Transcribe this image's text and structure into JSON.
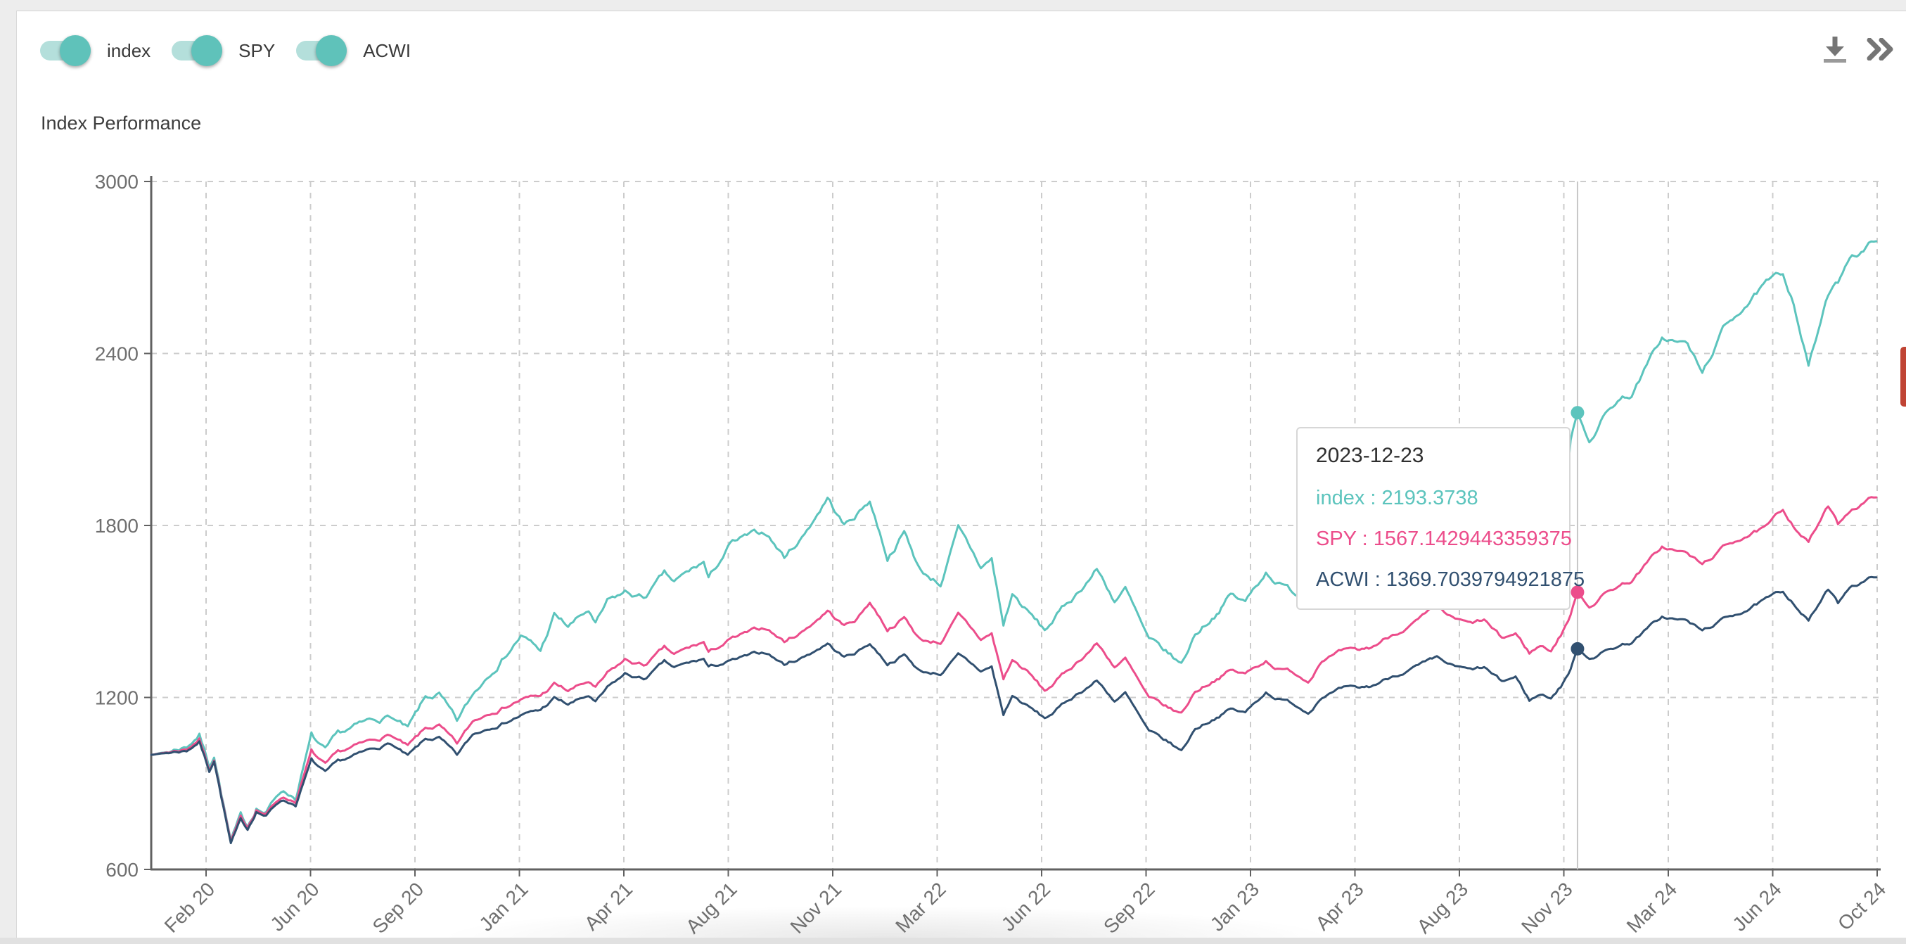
{
  "page": {
    "background": "#ededed",
    "card_background": "#ffffff"
  },
  "toolbar": {
    "toggles": [
      {
        "label": "index",
        "on": true
      },
      {
        "label": "SPY",
        "on": true
      },
      {
        "label": "ACWI",
        "on": true
      }
    ],
    "toggle_on_color": "#5fc2ba",
    "toggle_track_color": "#b4dfdb",
    "icons": [
      {
        "name": "download"
      },
      {
        "name": "double-chevron-right"
      }
    ],
    "icon_color": "#757575"
  },
  "header": {
    "title": "Index Performance"
  },
  "chart_data": {
    "type": "line",
    "title": "Index Performance",
    "xlabel": "",
    "ylabel": "",
    "ylim": [
      600,
      3000
    ],
    "y_ticks": [
      600,
      1200,
      1800,
      2400,
      3000
    ],
    "x_tick_labels": [
      "Feb 20",
      "Jun 20",
      "Sep 20",
      "Jan 21",
      "Apr 21",
      "Aug 21",
      "Nov 21",
      "Mar 22",
      "Jun 22",
      "Sep 22",
      "Jan 23",
      "Apr 23",
      "Aug 23",
      "Nov 23",
      "Mar 24",
      "Jun 24",
      "Oct 24"
    ],
    "grid": "dashed",
    "legend_position": "top-toggles",
    "dates": [
      "2020-01-02",
      "2020-01-20",
      "2020-02-07",
      "2020-02-20",
      "2020-03-01",
      "2020-03-06",
      "2020-03-23",
      "2020-04-02",
      "2020-04-09",
      "2020-04-18",
      "2020-04-28",
      "2020-05-13",
      "2020-05-28",
      "2020-06-13",
      "2020-06-27",
      "2020-07-10",
      "2020-07-24",
      "2020-08-11",
      "2020-09-01",
      "2020-09-19",
      "2020-10-07",
      "2020-10-21",
      "2020-11-08",
      "2020-11-24",
      "2020-12-14",
      "2021-01-12",
      "2021-02-01",
      "2021-02-15",
      "2021-03-01",
      "2021-03-22",
      "2021-03-29",
      "2021-04-10",
      "2021-04-28",
      "2021-05-17",
      "2021-06-07",
      "2021-06-17",
      "2021-07-17",
      "2021-07-22",
      "2021-08-13",
      "2021-08-30",
      "2021-09-19",
      "2021-10-07",
      "2021-10-25",
      "2021-11-20",
      "2021-12-07",
      "2021-12-20",
      "2022-01-02",
      "2022-01-20",
      "2022-02-06",
      "2022-02-23",
      "2022-03-15",
      "2022-04-02",
      "2022-04-25",
      "2022-05-06",
      "2022-05-18",
      "2022-05-27",
      "2022-06-11",
      "2022-06-29",
      "2022-07-09",
      "2022-07-31",
      "2022-08-21",
      "2022-09-08",
      "2022-09-19",
      "2022-10-13",
      "2022-11-04",
      "2022-11-15",
      "2022-11-29",
      "2022-12-21",
      "2023-01-04",
      "2023-01-19",
      "2023-02-09",
      "2023-02-23",
      "2023-03-08",
      "2023-03-24",
      "2023-04-07",
      "2023-04-29",
      "2023-05-13",
      "2023-05-27",
      "2023-06-18",
      "2023-07-09",
      "2023-08-02",
      "2023-08-18",
      "2023-09-05",
      "2023-09-19",
      "2023-10-07",
      "2023-10-21",
      "2023-11-04",
      "2023-11-15",
      "2023-11-26",
      "2023-12-06",
      "2023-12-16",
      "2023-12-23",
      "2024-01-04",
      "2024-01-18",
      "2024-02-02",
      "2024-02-16",
      "2024-03-18",
      "2024-04-13",
      "2024-04-28",
      "2024-05-19",
      "2024-06-10",
      "2024-07-02",
      "2024-07-19",
      "2024-07-30",
      "2024-08-14",
      "2024-09-03",
      "2024-09-13",
      "2024-09-25",
      "2024-10-09",
      "2024-10-22"
    ],
    "series": [
      {
        "name": "index",
        "color": "#5cc4bd",
        "values": [
          1000,
          1012,
          1032,
          1075,
          965,
          1005,
          698,
          780,
          748,
          820,
          800,
          880,
          855,
          1065,
          1005,
          1058,
          1085,
          1110,
          1135,
          1085,
          1190,
          1205,
          1105,
          1200,
          1300,
          1420,
          1360,
          1485,
          1445,
          1500,
          1448,
          1525,
          1560,
          1545,
          1625,
          1595,
          1668,
          1608,
          1732,
          1755,
          1770,
          1690,
          1760,
          1900,
          1800,
          1840,
          1890,
          1690,
          1780,
          1640,
          1600,
          1785,
          1650,
          1680,
          1450,
          1560,
          1500,
          1430,
          1475,
          1560,
          1650,
          1540,
          1580,
          1390,
          1340,
          1310,
          1420,
          1500,
          1560,
          1530,
          1640,
          1600,
          1570,
          1545,
          1630,
          1670,
          1665,
          1700,
          1760,
          1790,
          1830,
          1770,
          1745,
          1770,
          1680,
          1700,
          1620,
          1660,
          1630,
          1750,
          2100,
          2193.3738,
          2100,
          2180,
          2240,
          2260,
          2452,
          2430,
          2325,
          2480,
          2570,
          2640,
          2670,
          2580,
          2361,
          2600,
          2640,
          2745,
          2760,
          2802
        ]
      },
      {
        "name": "SPY",
        "color": "#ec4d8b",
        "values": [
          1000,
          1010,
          1022,
          1058,
          950,
          990,
          695,
          775,
          745,
          812,
          795,
          855,
          840,
          1010,
          958,
          998,
          1020,
          1042,
          1070,
          1025,
          1085,
          1098,
          1030,
          1110,
          1155,
          1196,
          1204,
          1245,
          1221,
          1253,
          1228,
          1277,
          1326,
          1310,
          1368,
          1345,
          1390,
          1352,
          1400,
          1420,
          1440,
          1395,
          1430,
          1505,
          1450,
          1475,
          1535,
          1440,
          1480,
          1400,
          1395,
          1485,
          1400,
          1420,
          1263,
          1330,
          1290,
          1220,
          1250,
          1320,
          1390,
          1310,
          1335,
          1190,
          1155,
          1140,
          1220,
          1270,
          1295,
          1280,
          1330,
          1300,
          1290,
          1260,
          1340,
          1360,
          1355,
          1370,
          1420,
          1460,
          1507,
          1470,
          1450,
          1465,
          1400,
          1420,
          1355,
          1380,
          1365,
          1420,
          1490,
          1567.1429443359375,
          1520,
          1560,
          1590,
          1610,
          1724,
          1700,
          1660,
          1720,
          1765,
          1790,
          1850,
          1800,
          1745,
          1865,
          1800,
          1855,
          1880,
          1905
        ]
      },
      {
        "name": "ACWI",
        "color": "#315070",
        "values": [
          1000,
          1008,
          1016,
          1048,
          945,
          985,
          690,
          768,
          738,
          805,
          788,
          845,
          828,
          980,
          932,
          968,
          988,
          1012,
          1040,
          992,
          1048,
          1056,
          992,
          1065,
          1101,
          1140,
          1155,
          1196,
          1174,
          1204,
          1179,
          1228,
          1278,
          1262,
          1320,
          1300,
          1332,
          1302,
          1325,
          1340,
          1355,
          1315,
          1340,
          1390,
          1340,
          1360,
          1390,
          1320,
          1350,
          1290,
          1285,
          1345,
          1290,
          1305,
          1138,
          1205,
          1170,
          1125,
          1150,
          1210,
          1260,
          1190,
          1215,
          1075,
          1035,
          1010,
          1090,
          1135,
          1160,
          1145,
          1220,
          1195,
          1180,
          1150,
          1210,
          1230,
          1225,
          1235,
          1275,
          1305,
          1330,
          1305,
          1290,
          1300,
          1250,
          1270,
          1190,
          1210,
          1200,
          1240,
          1300,
          1369.7039794921875,
          1340,
          1360,
          1380,
          1395,
          1480,
          1465,
          1430,
          1470,
          1505,
          1540,
          1565,
          1530,
          1470,
          1575,
          1525,
          1590,
          1605,
          1625
        ]
      }
    ],
    "tooltip": {
      "date": "2023-12-23",
      "separator": " : ",
      "rows": [
        {
          "label": "index",
          "value": "2193.3738"
        },
        {
          "label": "SPY",
          "value": "1567.1429443359375"
        },
        {
          "label": "ACWI",
          "value": "1369.7039794921875"
        }
      ]
    },
    "crosshair_color": "#c6c6c6",
    "grid_color": "#cccccc",
    "axis_color": "#616161",
    "axis_label_color": "#6f6f6f"
  },
  "right_edge_marker_color": "#c04434"
}
